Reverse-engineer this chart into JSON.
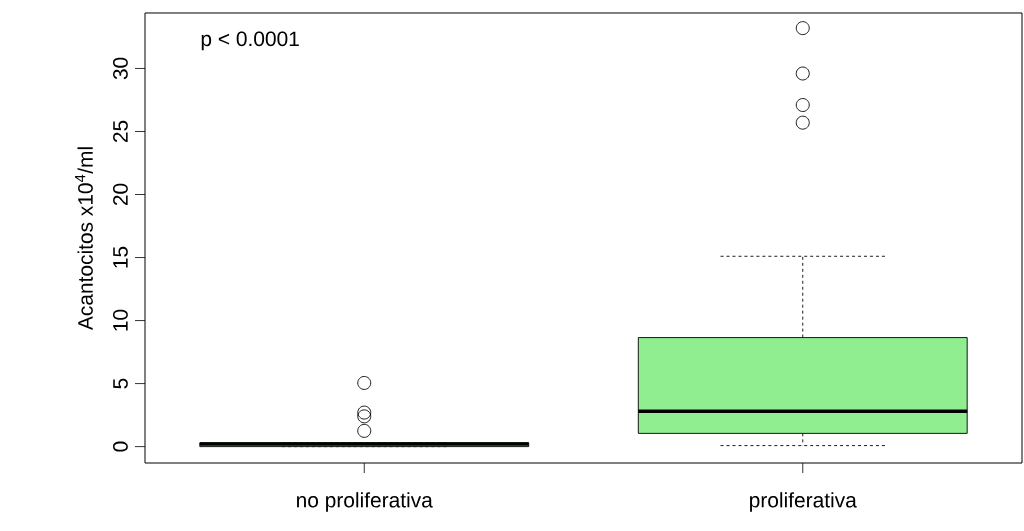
{
  "chart_data": {
    "type": "box",
    "categories": [
      "no proliferativa",
      "proliferativa"
    ],
    "boxes": [
      {
        "low": 0,
        "q1": 0,
        "median": 0.2,
        "q3": 0.3,
        "high": 0.3,
        "outliers": [
          5.05,
          2.7,
          2.4,
          1.25
        ]
      },
      {
        "low": 0.08,
        "q1": 1.05,
        "median": 2.8,
        "q3": 8.65,
        "high": 15.1,
        "outliers": [
          33.2,
          29.6,
          27.1,
          25.7
        ]
      }
    ],
    "colors": [
      "#90ee90",
      "#90ee90"
    ],
    "marker": "circle",
    "ylabel": "Acantocitos x10$^{4}$/ml",
    "ylim": [
      -1.3,
      34.4
    ],
    "yticks": [
      0,
      5,
      10,
      15,
      20,
      25,
      30
    ],
    "annotations": [
      "p < 0.0001"
    ]
  }
}
